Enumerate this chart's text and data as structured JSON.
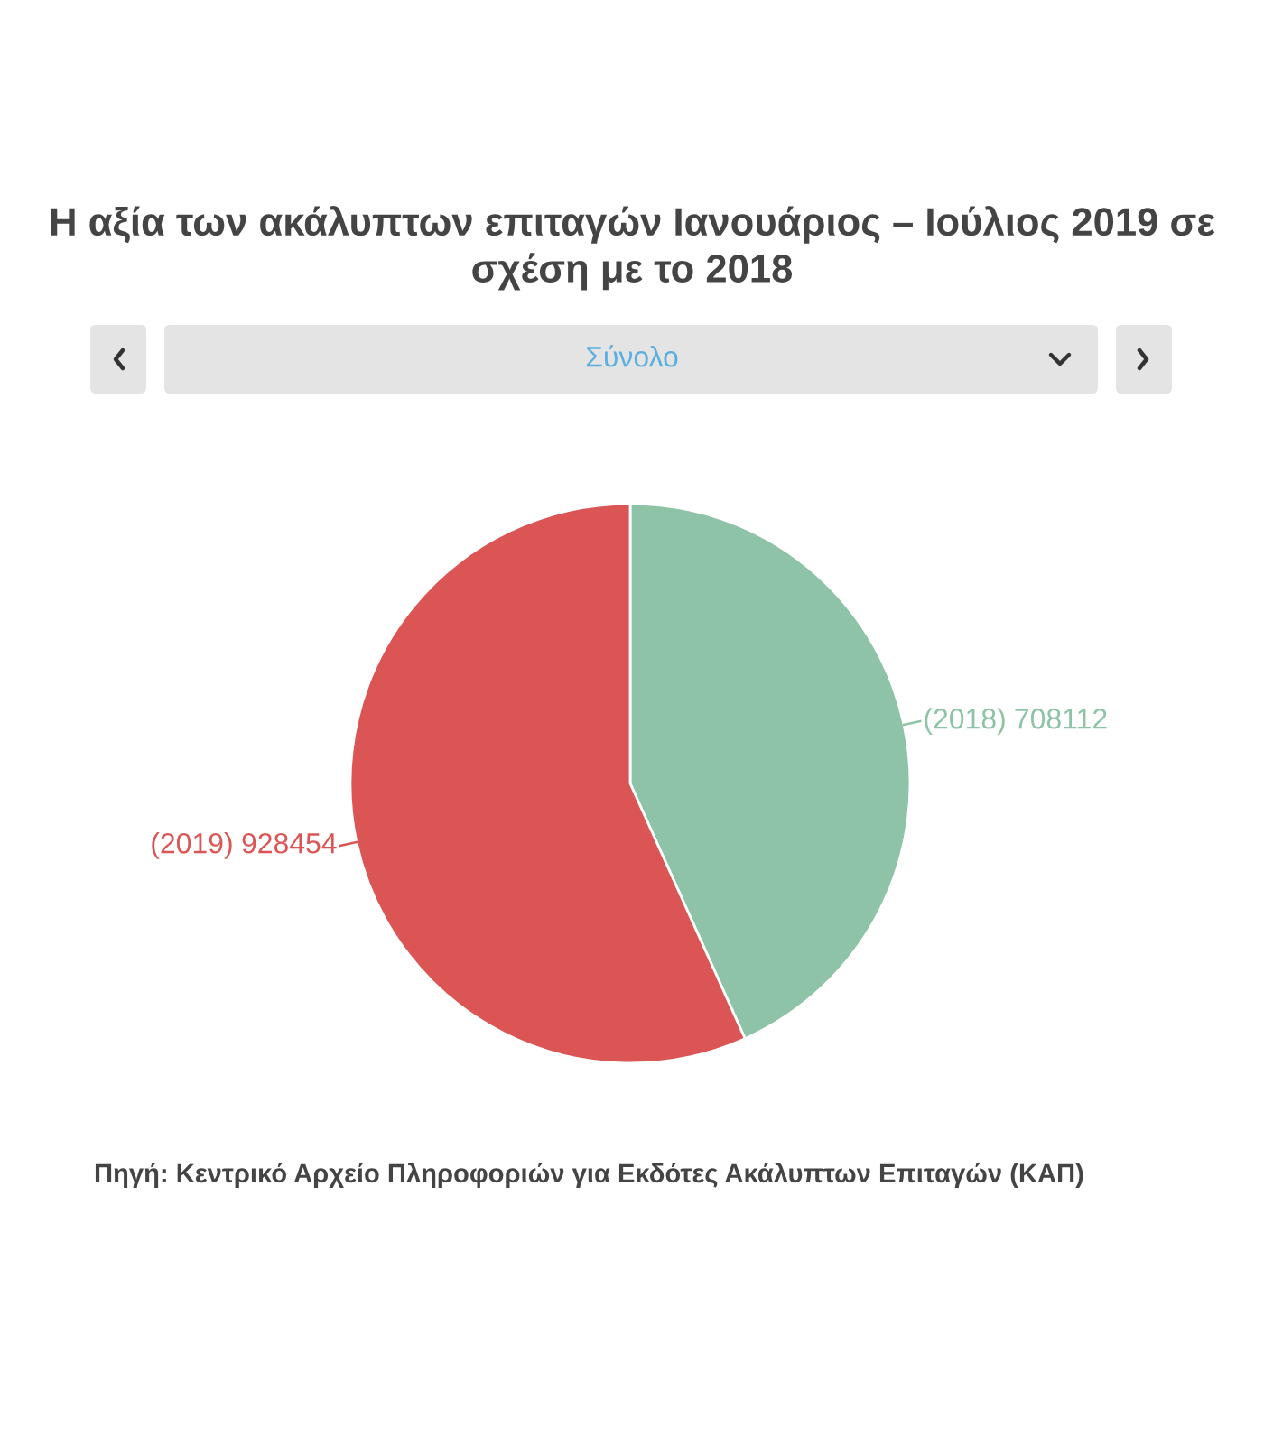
{
  "chart_data": {
    "type": "pie",
    "title": "Η αξία των ακάλυπτων επιταγών Ιανουάριος – Ιούλιος 2019 σε σχέση με το 2018",
    "subtitle": "Σύνολο",
    "categories": [
      "(2018)",
      "(2019)"
    ],
    "values": [
      708112,
      928454
    ],
    "colors": [
      "#8fc3a7",
      "#dc5555"
    ],
    "data_labels": true,
    "annotations": [
      "Πηγή: Κεντρικό Αρχείο Πληροφοριών για Εκδότες Ακάλυπτων Επιταγών (ΚΑΠ)"
    ]
  }
}
